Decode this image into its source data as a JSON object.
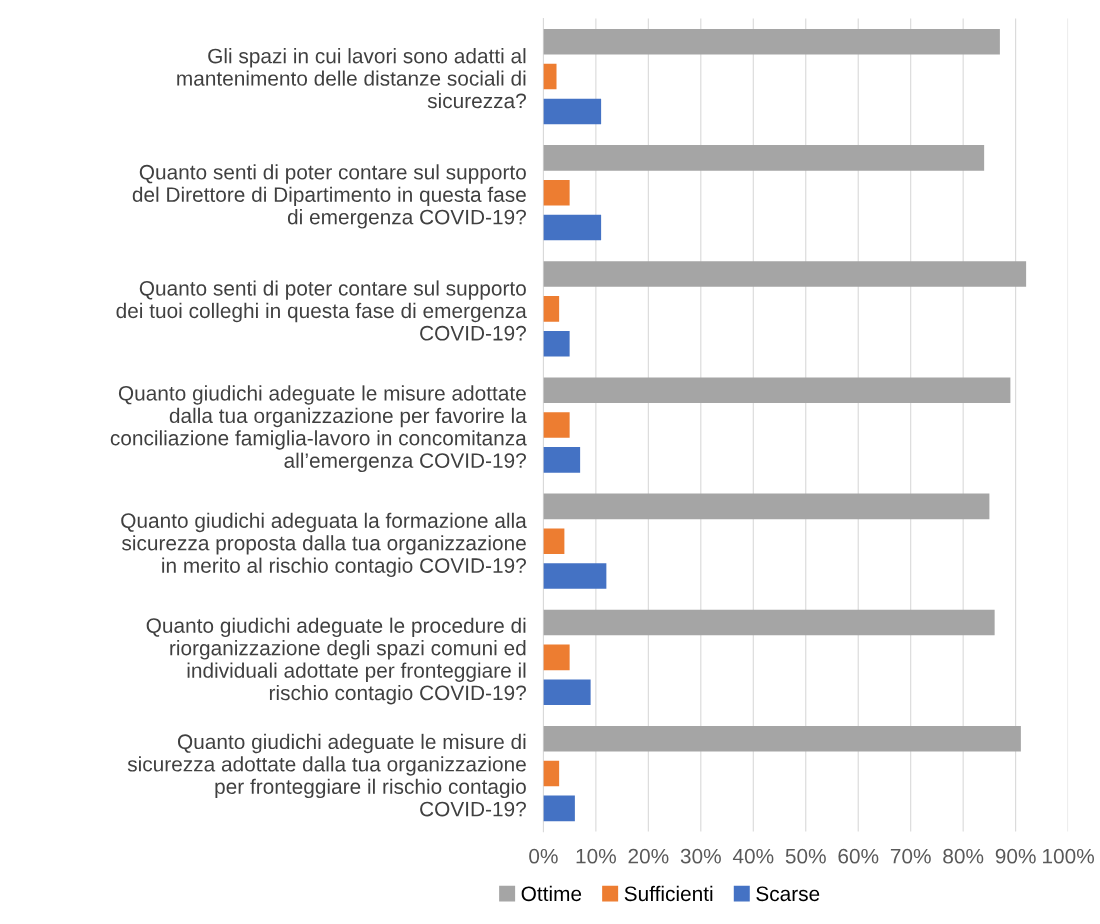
{
  "chart_data": {
    "type": "bar",
    "orientation": "horizontal",
    "categories": [
      "Gli spazi in cui lavori sono adatti al mantenimento delle distanze sociali di sicurezza?",
      "Quanto senti di poter contare sul supporto del Direttore di Dipartimento in questa fase di emergenza COVID-19?",
      "Quanto senti di poter contare sul supporto dei tuoi colleghi in questa fase di emergenza COVID-19?",
      "Quanto giudichi adeguate le misure adottate dalla tua organizzazione per favorire la conciliazione famiglia-lavoro in concomitanza all’emergenza COVID-19?",
      "Quanto giudichi adeguata la formazione alla sicurezza proposta dalla tua organizzazione in merito al rischio contagio COVID-19?",
      "Quanto giudichi adeguate le procedure di riorganizzazione degli spazi comuni ed individuali adottate per fronteggiare il rischio contagio COVID-19?",
      "Quanto giudichi adeguate le misure di sicurezza adottate dalla tua organizzazione per fronteggiare il rischio contagio COVID-19?"
    ],
    "series": [
      {
        "name": "Ottime",
        "color": "#a5a5a5",
        "values": [
          87,
          84,
          92,
          89,
          85,
          86,
          91
        ]
      },
      {
        "name": "Sufficienti",
        "color": "#ed7d31",
        "values": [
          2.5,
          5,
          3,
          5,
          4,
          5,
          3
        ]
      },
      {
        "name": "Scarse",
        "color": "#4472c4",
        "values": [
          11,
          11,
          5,
          7,
          12,
          9,
          6
        ]
      }
    ],
    "xlim": [
      0,
      100
    ],
    "xticks": [
      {
        "value": 0,
        "label": "0%"
      },
      {
        "value": 10,
        "label": "10%"
      },
      {
        "value": 20,
        "label": "20%"
      },
      {
        "value": 30,
        "label": "30%"
      },
      {
        "value": 40,
        "label": "40%"
      },
      {
        "value": 50,
        "label": "50%"
      },
      {
        "value": 60,
        "label": "60%"
      },
      {
        "value": 70,
        "label": "70%"
      },
      {
        "value": 80,
        "label": "80%"
      },
      {
        "value": 90,
        "label": "90%"
      },
      {
        "value": 100,
        "label": "100%"
      }
    ],
    "grid": "x",
    "legend": "bottom"
  }
}
